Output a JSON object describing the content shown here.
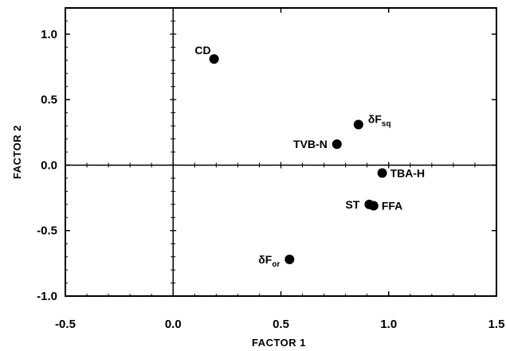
{
  "chart_data": {
    "type": "scatter",
    "xlabel": "FACTOR 1",
    "ylabel": "FACTOR 2",
    "xlim": [
      -0.5,
      1.5
    ],
    "ylim": [
      -1.0,
      1.2
    ],
    "xticks": [
      -0.5,
      0.0,
      0.5,
      1.0,
      1.5
    ],
    "xtick_labels": [
      "-0.5",
      "0.0",
      "0.5",
      "1.0",
      "1.5"
    ],
    "yticks": [
      -1.0,
      -0.5,
      0.0,
      0.5,
      1.0
    ],
    "ytick_labels": [
      "-1.0",
      "-0.5",
      "0.0",
      "0.5",
      "1.0"
    ],
    "grid": false,
    "reference_lines": {
      "x": 0,
      "y": 0
    },
    "points": [
      {
        "id": "cd",
        "label": "CD",
        "x": 0.19,
        "y": 0.81,
        "label_side": "upper-left"
      },
      {
        "id": "dfsq",
        "label": "δF",
        "sub": "sq",
        "x": 0.86,
        "y": 0.31,
        "label_side": "upper-right"
      },
      {
        "id": "tvbn",
        "label": "TVB-N",
        "x": 0.76,
        "y": 0.16,
        "label_side": "left"
      },
      {
        "id": "tbah",
        "label": "TBA-H",
        "x": 0.97,
        "y": -0.06,
        "label_side": "right"
      },
      {
        "id": "st",
        "label": "ST",
        "x": 0.91,
        "y": -0.3,
        "label_side": "left"
      },
      {
        "id": "ffa",
        "label": "FFA",
        "x": 0.93,
        "y": -0.31,
        "label_side": "right"
      },
      {
        "id": "dfor",
        "label": "δF",
        "sub": "or",
        "x": 0.54,
        "y": -0.72,
        "label_side": "left"
      }
    ],
    "marker_color": "#000000"
  }
}
